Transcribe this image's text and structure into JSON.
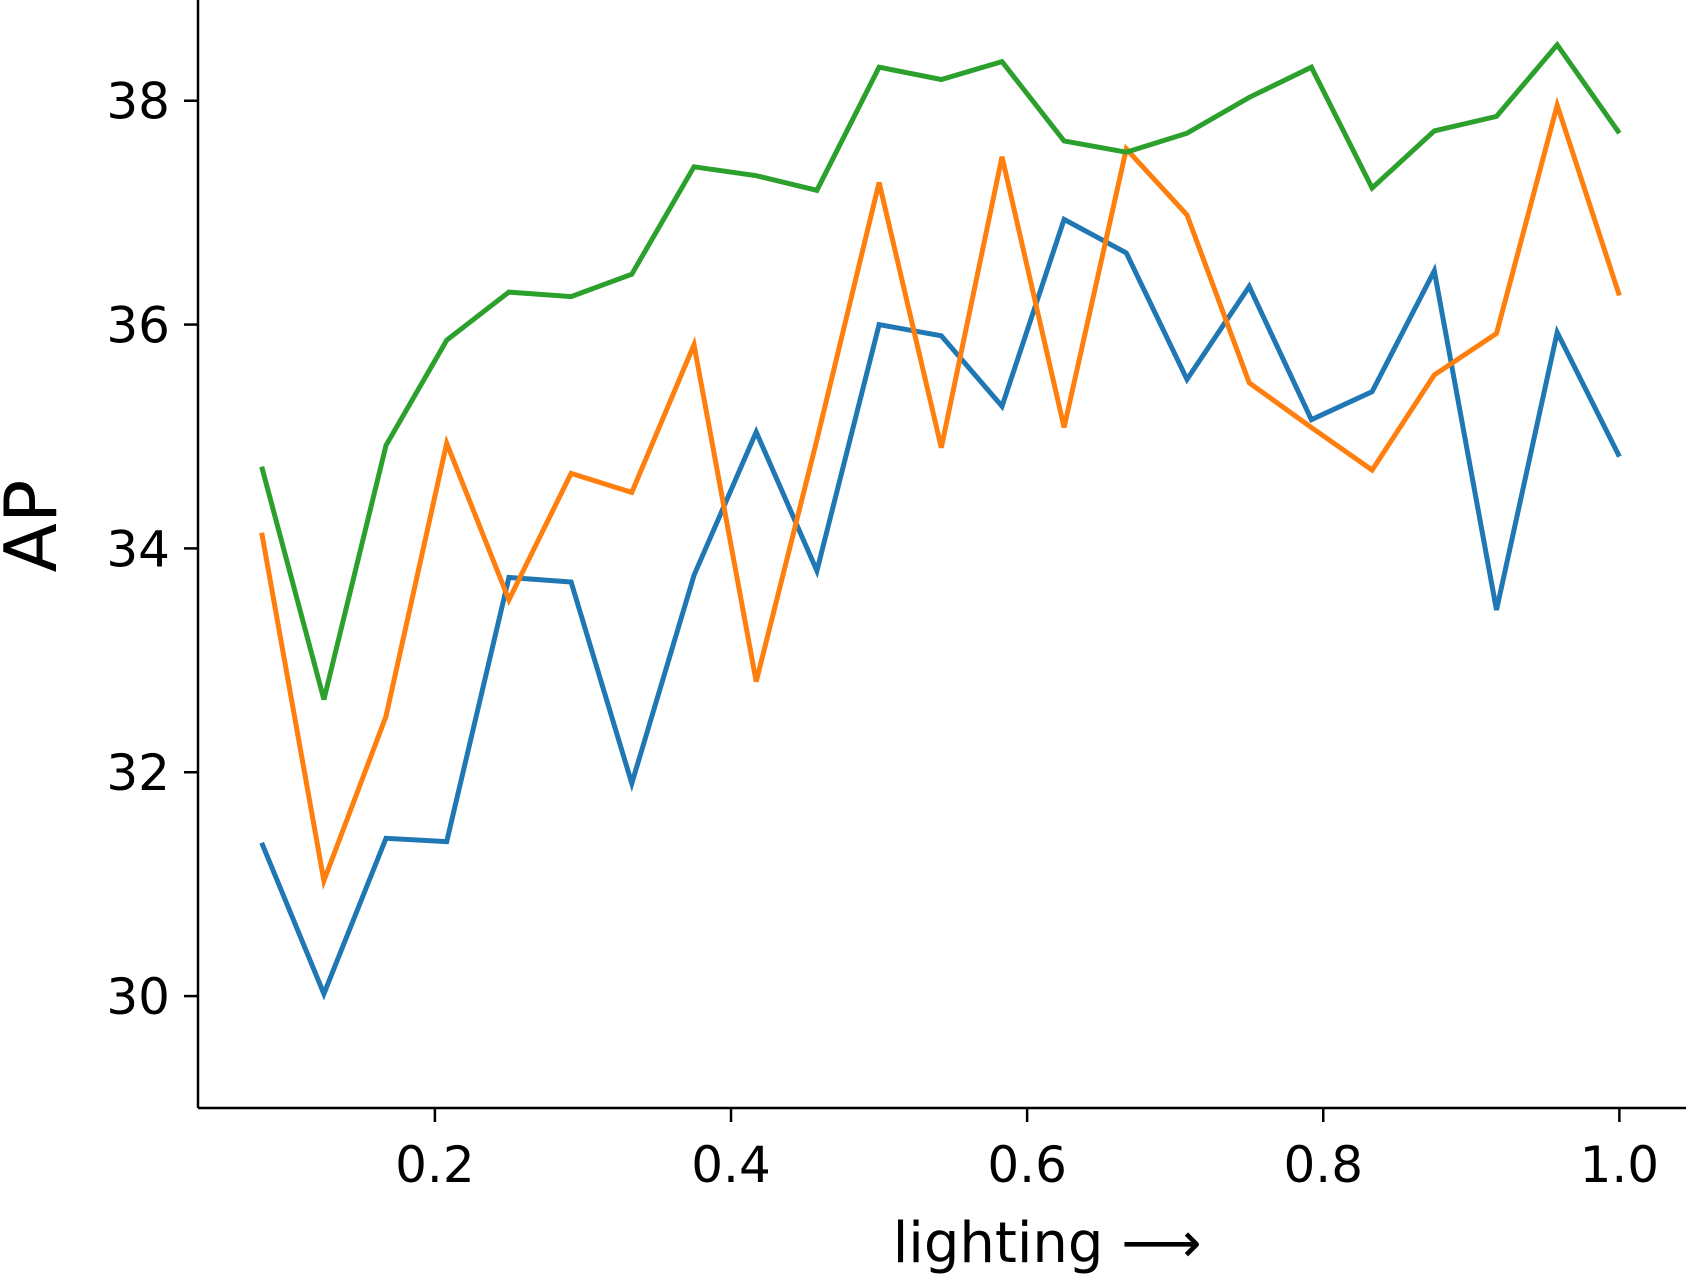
{
  "chart_data": {
    "type": "line",
    "xlabel": "lighting ⟶",
    "ylabel": "AP",
    "xlim": [
      0.04,
      1.045
    ],
    "ylim": [
      29.0,
      38.9
    ],
    "xticks": [
      {
        "value": 0.2,
        "label": "0.2"
      },
      {
        "value": 0.4,
        "label": "0.4"
      },
      {
        "value": 0.6,
        "label": "0.6"
      },
      {
        "value": 0.8,
        "label": "0.8"
      },
      {
        "value": 1.0,
        "label": "1.0"
      }
    ],
    "yticks": [
      {
        "value": 30,
        "label": "30"
      },
      {
        "value": 32,
        "label": "32"
      },
      {
        "value": 34,
        "label": "34"
      },
      {
        "value": 36,
        "label": "36"
      },
      {
        "value": 38,
        "label": "38"
      }
    ],
    "grid": false,
    "x": [
      0.083,
      0.125,
      0.167,
      0.208,
      0.25,
      0.292,
      0.333,
      0.375,
      0.417,
      0.458,
      0.5,
      0.542,
      0.583,
      0.625,
      0.667,
      0.708,
      0.75,
      0.792,
      0.833,
      0.875,
      0.917,
      0.958,
      1.0
    ],
    "series": [
      {
        "color": "#1f77b4",
        "values": [
          31.37,
          30.02,
          31.41,
          31.38,
          33.74,
          33.7,
          31.9,
          33.76,
          35.04,
          33.8,
          36.0,
          35.9,
          35.27,
          36.94,
          36.64,
          35.51,
          36.34,
          35.15,
          35.4,
          36.48,
          33.45,
          35.93,
          34.82
        ]
      },
      {
        "color": "#ff7f0e",
        "values": [
          34.14,
          31.03,
          32.5,
          34.94,
          33.54,
          34.67,
          34.5,
          35.82,
          32.81,
          34.97,
          37.27,
          34.9,
          37.5,
          35.08,
          37.57,
          36.98,
          35.48,
          35.08,
          34.7,
          35.55,
          35.92,
          37.96,
          36.26
        ]
      },
      {
        "color": "#2ca02c",
        "values": [
          34.73,
          32.65,
          34.92,
          35.86,
          36.29,
          36.25,
          36.45,
          37.41,
          37.33,
          37.2,
          38.3,
          38.19,
          38.35,
          37.64,
          37.54,
          37.71,
          38.03,
          38.3,
          37.22,
          37.73,
          37.86,
          38.5,
          37.71
        ]
      }
    ]
  }
}
